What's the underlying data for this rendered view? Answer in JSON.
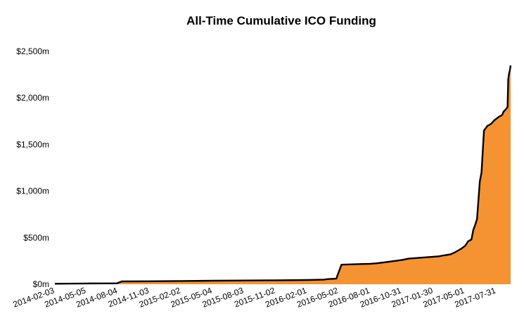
{
  "chart_data": {
    "type": "area",
    "title": "All-Time Cumulative ICO Funding",
    "xlabel": "",
    "ylabel": "",
    "ylim": [
      0,
      2500
    ],
    "xlim": [
      "2014-02-03",
      "2017-09-10"
    ],
    "y_ticks": [
      {
        "value": 0,
        "label": "$0m"
      },
      {
        "value": 500,
        "label": "$500m"
      },
      {
        "value": 1000,
        "label": "$1,000m"
      },
      {
        "value": 1500,
        "label": "$1,500m"
      },
      {
        "value": 2000,
        "label": "$2,000m"
      },
      {
        "value": 2500,
        "label": "$2,500m"
      }
    ],
    "x_ticks": [
      "2014-02-03",
      "2014-05-05",
      "2014-08-04",
      "2014-11-03",
      "2015-02-02",
      "2015-05-04",
      "2015-08-03",
      "2015-11-02",
      "2016-02-01",
      "2016-05-02",
      "2016-08-01",
      "2016-10-31",
      "2017-01-30",
      "2017-05-01",
      "2017-07-31"
    ],
    "grid": false,
    "colors": {
      "fill": "#f59332",
      "line": "#000000"
    },
    "series": [
      {
        "x": [
          "2014-02-03",
          "2014-05-05",
          "2014-08-01",
          "2014-08-15",
          "2014-11-03",
          "2015-02-02",
          "2015-05-04",
          "2015-08-03",
          "2015-11-02",
          "2016-02-01",
          "2016-03-20",
          "2016-04-01",
          "2016-04-25",
          "2016-05-10",
          "2016-08-01",
          "2016-08-20",
          "2016-09-10",
          "2016-10-31",
          "2016-11-20",
          "2017-01-30",
          "2017-02-15",
          "2017-03-01",
          "2017-03-20",
          "2017-04-01",
          "2017-04-20",
          "2017-05-01",
          "2017-05-05",
          "2017-05-10",
          "2017-05-20",
          "2017-05-25",
          "2017-06-01",
          "2017-06-05",
          "2017-06-08",
          "2017-06-13",
          "2017-06-18",
          "2017-06-25",
          "2017-07-01",
          "2017-07-05",
          "2017-07-15",
          "2017-07-25",
          "2017-08-01",
          "2017-08-08",
          "2017-08-14",
          "2017-08-17",
          "2017-08-20",
          "2017-08-25",
          "2017-09-01",
          "2017-09-03",
          "2017-09-05",
          "2017-09-08",
          "2017-09-10"
        ],
        "values": [
          5,
          8,
          10,
          30,
          32,
          35,
          38,
          40,
          42,
          45,
          50,
          55,
          60,
          210,
          220,
          225,
          235,
          260,
          275,
          295,
          300,
          310,
          320,
          340,
          380,
          410,
          430,
          460,
          480,
          580,
          650,
          700,
          850,
          1100,
          1200,
          1650,
          1680,
          1700,
          1720,
          1760,
          1780,
          1800,
          1810,
          1820,
          1850,
          1870,
          1900,
          2200,
          2250,
          2300,
          2350
        ]
      }
    ]
  }
}
